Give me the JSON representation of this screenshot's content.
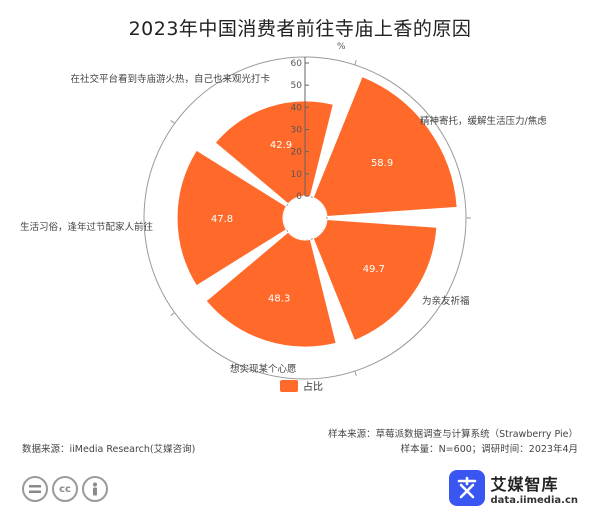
{
  "title": "2023年中国消费者前往寺庙上香的原因",
  "chart_data": {
    "type": "polar-bar",
    "unit_label": "%",
    "radial_ticks": [
      "0",
      "10",
      "20",
      "30",
      "40",
      "50",
      "60"
    ],
    "rmax": 60,
    "categories": [
      "精神寄托，缓解生活压力/焦虑",
      "为亲友祈福",
      "想实现某个心愿",
      "生活习俗，逢年过节配家人前往",
      "在社交平台看到寺庙游火热，自己也来观光打卡"
    ],
    "series": [
      {
        "name": "占比",
        "values": [
          58.9,
          49.7,
          48.3,
          47.8,
          42.9
        ],
        "color": "#FF6A2B"
      }
    ],
    "legend_position": "bottom-center"
  },
  "footer": {
    "source_right": "样本来源：草莓派数据调查与计算系统（Strawberry Pie）",
    "sample_note": "样本量：N=600；调研时间：2023年4月",
    "source_left": "数据来源：iiMedia Research(艾媒咨询)"
  },
  "brand": {
    "name": "艾媒智库",
    "url": "data.iimedia.cn"
  },
  "license_icons": [
    "=",
    "cc",
    "person"
  ]
}
